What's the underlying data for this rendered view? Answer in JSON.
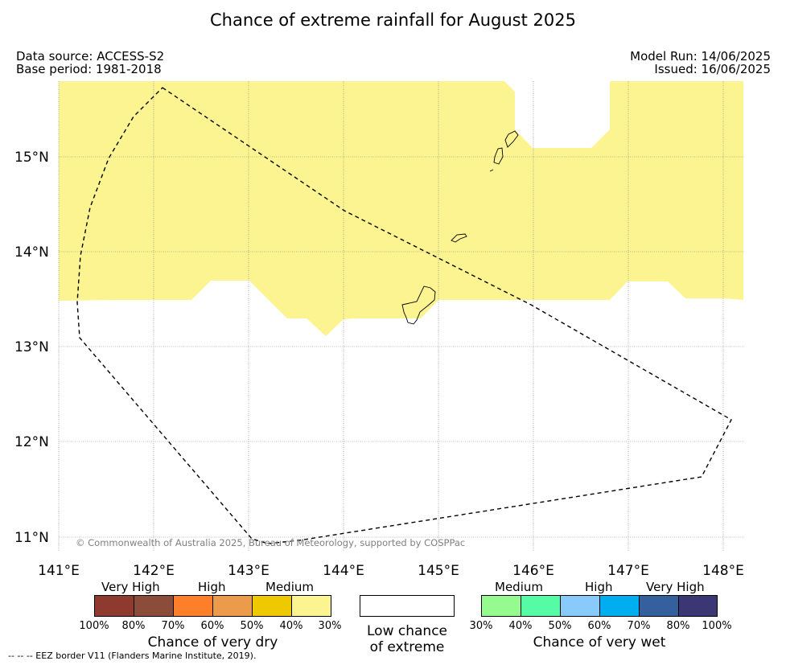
{
  "title": "Chance of extreme rainfall for August 2025",
  "meta": {
    "data_source": "Data source: ACCESS-S2",
    "base_period": "Base period: 1981-2018",
    "model_run": "Model Run: 14/06/2025",
    "issued": "Issued: 16/06/2025"
  },
  "map": {
    "extent": {
      "lon": [
        141.0,
        148.2
      ],
      "lat": [
        10.85,
        15.8
      ]
    },
    "lat_labels": [
      "15°N",
      "14°N",
      "13°N",
      "12°N",
      "11°N"
    ],
    "lon_labels": [
      "141°E",
      "142°E",
      "143°E",
      "144°E",
      "145°E",
      "146°E",
      "147°E",
      "148°E"
    ],
    "copyright": "© Commonwealth of Australia 2025, Bureau of Meteorology, supported by COSPPac",
    "shaded_category": "Medium (30%-40%) chance of very dry",
    "shaded_color": "#fbf490"
  },
  "legend": {
    "dry": {
      "categories": [
        "Very High",
        "High",
        "Medium"
      ],
      "colors": [
        "#8e3a2f",
        "#8b4c3a",
        "#fd7f2a",
        "#ec9b4b",
        "#eec800",
        "#fbf490"
      ],
      "ticks": [
        "100%",
        "80%",
        "70%",
        "60%",
        "50%",
        "40%",
        "30%"
      ],
      "title": "Chance of very dry"
    },
    "neutral": {
      "title_line1": "Low chance",
      "title_line2": "of extreme",
      "color": "#ffffff"
    },
    "wet": {
      "categories": [
        "Medium",
        "High",
        "Very High"
      ],
      "colors": [
        "#95fb8f",
        "#55fba5",
        "#88cbfb",
        "#00aeef",
        "#34609e",
        "#3b3775"
      ],
      "ticks": [
        "30%",
        "40%",
        "50%",
        "60%",
        "70%",
        "80%",
        "100%"
      ],
      "title": "Chance of very wet"
    }
  },
  "footer": "--  --  -- EEZ border V11 (Flanders Marine Institute, 2019)."
}
